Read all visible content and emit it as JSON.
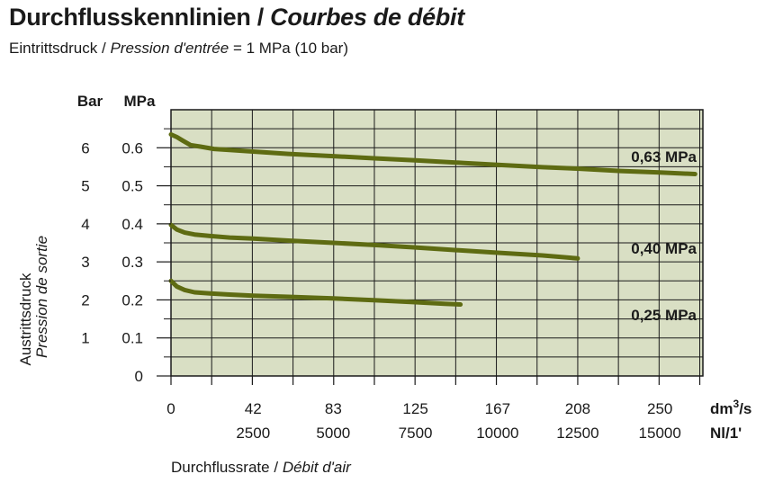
{
  "header": {
    "title_de": "Durchflusskennlinien",
    "title_sep": "/",
    "title_fr": "Courbes de débit",
    "subtitle_de": "Eintrittsdruck",
    "subtitle_sep": "/",
    "subtitle_fr": "Pression d'entrée",
    "subtitle_value": "= 1 MPa (10 bar)"
  },
  "chart_data": {
    "type": "line",
    "y_unit_bar": "Bar",
    "y_unit_mpa": "MPa",
    "ylabel_de": "Austrittsdruck",
    "ylabel_fr": "Pression de sortie",
    "xlabel_de": "Durchflussrate",
    "xlabel_sep": "/",
    "xlabel_fr": "Débit d'air",
    "x_unit_1": "dm³/s",
    "x_unit_1_base": "dm",
    "x_unit_1_sup": "3",
    "x_unit_1_tail": "/s",
    "x_unit_2": "Nl/1'",
    "ylim": [
      0,
      0.7
    ],
    "xlim": [
      0,
      272
    ],
    "y_ticks_mpa": [
      "0",
      "0.1",
      "0.2",
      "0.3",
      "0.4",
      "0.5",
      "0.6"
    ],
    "y_ticks_bar": [
      "1",
      "2",
      "3",
      "4",
      "5",
      "6"
    ],
    "x_ticks": [
      {
        "v": 0,
        "dms": "0",
        "nl": ""
      },
      {
        "v": 42,
        "dms": "42",
        "nl": "2500"
      },
      {
        "v": 83,
        "dms": "83",
        "nl": "5000"
      },
      {
        "v": 125,
        "dms": "125",
        "nl": "7500"
      },
      {
        "v": 167,
        "dms": "167",
        "nl": "10000"
      },
      {
        "v": 208,
        "dms": "208",
        "nl": "12500"
      },
      {
        "v": 250,
        "dms": "250",
        "nl": "15000"
      }
    ],
    "grid": true,
    "series": [
      {
        "name": "0,63 MPa",
        "color": "#5e6b12",
        "x": [
          0,
          3,
          6,
          10,
          15,
          22,
          30,
          42,
          60,
          83,
          105,
          125,
          150,
          167,
          190,
          208,
          230,
          250,
          268
        ],
        "y": [
          0.635,
          0.628,
          0.619,
          0.607,
          0.603,
          0.597,
          0.594,
          0.59,
          0.584,
          0.578,
          0.572,
          0.567,
          0.56,
          0.555,
          0.549,
          0.545,
          0.539,
          0.535,
          0.531
        ]
      },
      {
        "name": "0,40 MPa",
        "color": "#5e6b12",
        "x": [
          0,
          3,
          7,
          12,
          20,
          30,
          42,
          60,
          83,
          105,
          125,
          145,
          167,
          190,
          208
        ],
        "y": [
          0.397,
          0.385,
          0.377,
          0.372,
          0.368,
          0.364,
          0.361,
          0.356,
          0.35,
          0.344,
          0.338,
          0.331,
          0.324,
          0.317,
          0.309
        ]
      },
      {
        "name": "0,25 MPa",
        "color": "#5e6b12",
        "x": [
          0,
          3,
          7,
          12,
          20,
          30,
          42,
          60,
          83,
          105,
          125,
          140,
          148
        ],
        "y": [
          0.25,
          0.235,
          0.226,
          0.22,
          0.217,
          0.214,
          0.211,
          0.208,
          0.204,
          0.199,
          0.194,
          0.19,
          0.188
        ]
      }
    ],
    "plot_bg": "#d9dfc4",
    "grid_color": "#1a1a1a"
  }
}
